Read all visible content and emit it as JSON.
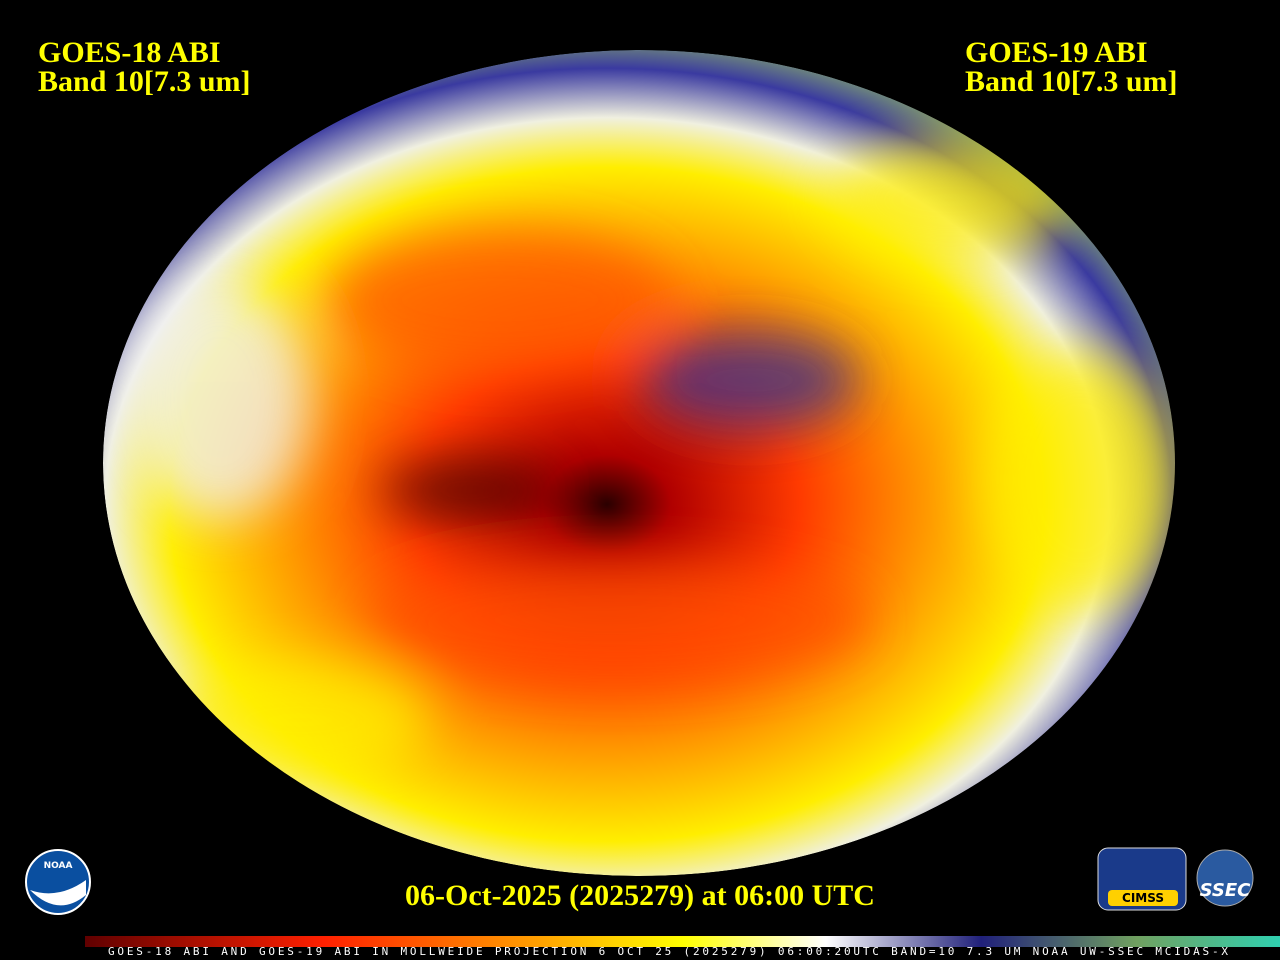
{
  "header": {
    "left": {
      "satellite": "GOES-18 ABI",
      "band": "Band 10[7.3 um]"
    },
    "right": {
      "satellite": "GOES-19 ABI",
      "band": "Band 10[7.3 um]"
    }
  },
  "timestamp": "06-Oct-2025 (2025279) at 06:00 UTC",
  "footer_caption": "GOES-18 ABI AND GOES-19 ABI IN MOLLWEIDE PROJECTION 6 OCT 25 (2025279) 06:00:20UTC BAND=10 7.3 UM NOAA UW-SSEC MCIDAS-X",
  "logos": [
    "NOAA",
    "CIMSS",
    "SSEC"
  ]
}
